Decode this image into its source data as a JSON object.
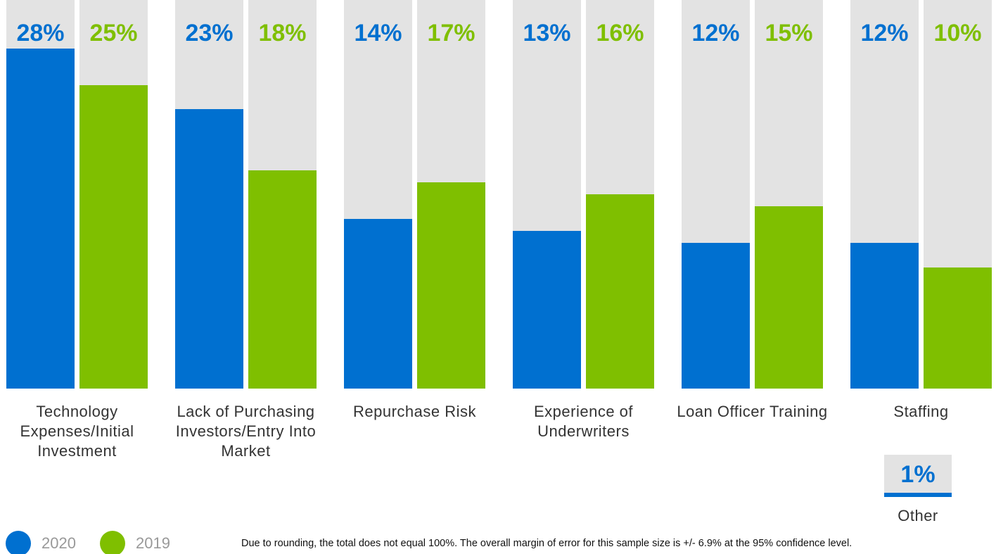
{
  "chart_data": {
    "type": "bar",
    "categories": [
      "Technology Expenses/Initial Investment",
      "Lack of Purchasing Investors/Entry Into Market",
      "Repurchase Risk",
      "Experience of Underwriters",
      "Loan Officer Training",
      "Staffing"
    ],
    "series": [
      {
        "name": "2020",
        "color": "#0070d0",
        "values": [
          28,
          23,
          14,
          13,
          12,
          12
        ],
        "value_labels": [
          "28%",
          "23%",
          "14%",
          "13%",
          "12%",
          "12%"
        ]
      },
      {
        "name": "2019",
        "color": "#7fbf00",
        "values": [
          25,
          18,
          17,
          16,
          15,
          10
        ],
        "value_labels": [
          "25%",
          "18%",
          "17%",
          "16%",
          "15%",
          "10%"
        ]
      }
    ],
    "ylim": [
      0,
      32
    ],
    "other": {
      "label": "Other",
      "value": 1,
      "value_label": "1%"
    },
    "footnote": "Due to rounding, the total does not equal 100%. The overall margin of error for this sample size is +/- 6.9% at the 95% confidence level."
  }
}
